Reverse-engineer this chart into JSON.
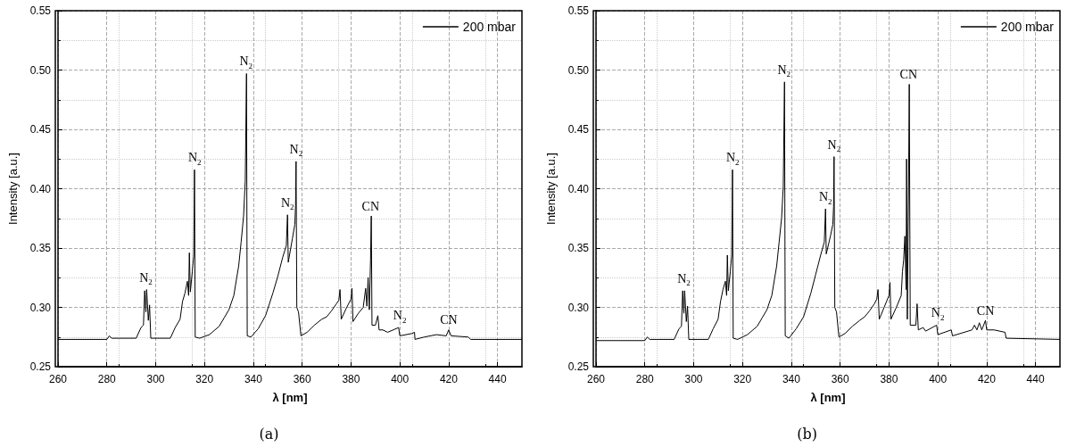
{
  "chart_data": [
    {
      "type": "line",
      "title": "(a)",
      "xlabel": "λ [nm]",
      "ylabel": "Intensity [a.u.]",
      "xlim": [
        260,
        450
      ],
      "xticks": [
        260,
        280,
        300,
        320,
        340,
        360,
        380,
        400,
        420,
        440
      ],
      "ylim": [
        0.25,
        0.55
      ],
      "yticks": [
        0.25,
        {
          "value": 0.3,
          "label": "0.30"
        },
        0.35,
        {
          "value": 0.4,
          "label": "0.40"
        },
        0.45,
        {
          "value": 0.5,
          "label": "0.50"
        },
        0.55
      ],
      "grid": true,
      "legend": "top right",
      "marker": "none",
      "line_style": "solid",
      "series": [
        {
          "name": "200 mbar",
          "color": "#000000",
          "x": [
            260,
            280,
            281,
            282,
            292,
            294,
            295,
            295.5,
            296,
            296.3,
            297,
            297.5,
            298,
            306,
            308,
            310,
            311,
            312,
            313,
            313.5,
            313.8,
            314.2,
            315,
            315.6,
            315.9,
            316.2,
            318,
            322,
            326,
            328,
            330,
            332,
            334,
            335,
            336,
            336.7,
            337.2,
            337.5,
            339,
            342,
            345,
            348,
            350,
            352,
            353.5,
            354,
            354.3,
            356,
            357,
            357.3,
            357.5,
            357.8,
            358.5,
            359.5,
            362,
            365,
            368,
            370,
            372,
            374,
            375,
            375.5,
            376,
            378,
            380,
            380.4,
            380.8,
            383,
            385,
            386,
            386.5,
            387,
            387.5,
            388,
            388.3,
            388.6,
            390,
            391,
            391.5,
            393,
            395,
            399.5,
            400,
            405,
            406,
            406.2,
            410,
            415,
            419,
            420,
            421,
            428,
            429,
            450
          ],
          "values": [
            0.273,
            0.273,
            0.276,
            0.274,
            0.274,
            0.283,
            0.285,
            0.314,
            0.296,
            0.315,
            0.289,
            0.302,
            0.274,
            0.274,
            0.283,
            0.29,
            0.305,
            0.312,
            0.322,
            0.31,
            0.346,
            0.313,
            0.33,
            0.344,
            0.416,
            0.275,
            0.274,
            0.277,
            0.284,
            0.291,
            0.298,
            0.31,
            0.335,
            0.355,
            0.377,
            0.407,
            0.497,
            0.276,
            0.275,
            0.282,
            0.293,
            0.312,
            0.326,
            0.342,
            0.352,
            0.378,
            0.338,
            0.358,
            0.37,
            0.386,
            0.423,
            0.3,
            0.296,
            0.276,
            0.279,
            0.285,
            0.29,
            0.292,
            0.297,
            0.303,
            0.306,
            0.315,
            0.29,
            0.299,
            0.307,
            0.316,
            0.288,
            0.295,
            0.3,
            0.316,
            0.301,
            0.325,
            0.298,
            0.34,
            0.377,
            0.285,
            0.285,
            0.293,
            0.281,
            0.281,
            0.279,
            0.283,
            0.276,
            0.278,
            0.279,
            0.273,
            0.275,
            0.277,
            0.276,
            0.281,
            0.276,
            0.275,
            0.273,
            0.273
          ]
        }
      ],
      "annotations": [
        {
          "text": "N$_{2}$",
          "x": 296,
          "y": 0.315
        },
        {
          "text": "N$_{2}$",
          "x": 316,
          "y": 0.416
        },
        {
          "text": "N$_{2}$",
          "x": 337,
          "y": 0.497
        },
        {
          "text": "N$_{2}$",
          "x": 354,
          "y": 0.378
        },
        {
          "text": "N$_{2}$",
          "x": 357.5,
          "y": 0.423
        },
        {
          "text": "CN",
          "x": 388,
          "y": 0.377
        },
        {
          "text": "N$_{2}$",
          "x": 400,
          "y": 0.283
        },
        {
          "text": "CN",
          "x": 420,
          "y": 0.281
        }
      ]
    },
    {
      "type": "line",
      "title": "(b)",
      "xlabel": "λ [nm]",
      "ylabel": "Intensity [a.u.]",
      "xlim": [
        260,
        450
      ],
      "xticks": [
        260,
        280,
        300,
        320,
        340,
        360,
        380,
        400,
        420,
        440
      ],
      "ylim": [
        0.25,
        0.55
      ],
      "yticks": [
        0.25,
        {
          "value": 0.3,
          "label": "0.30"
        },
        0.35,
        {
          "value": 0.4,
          "label": "0.40"
        },
        0.45,
        {
          "value": 0.5,
          "label": "0.50"
        },
        0.55
      ],
      "grid": true,
      "legend": "top right",
      "marker": "none",
      "line_style": "solid",
      "series": [
        {
          "name": "200 mbar",
          "color": "#000000",
          "x": [
            260,
            280,
            281,
            282,
            292,
            294,
            295,
            295.5,
            296,
            296.3,
            297,
            297.5,
            298,
            306,
            308,
            310,
            311,
            312,
            313,
            313.5,
            313.8,
            314.2,
            315,
            315.6,
            315.9,
            316.2,
            318,
            322,
            326,
            328,
            330,
            332,
            334,
            335,
            336,
            336.7,
            337.2,
            337.5,
            339,
            342,
            345,
            348,
            350,
            352,
            353.5,
            354,
            354.3,
            356,
            357,
            357.3,
            357.5,
            357.8,
            358.5,
            359.5,
            362,
            365,
            368,
            370,
            372,
            374,
            375,
            375.5,
            376,
            378,
            380,
            380.4,
            380.8,
            383,
            385,
            385.5,
            386,
            386.5,
            387,
            387.2,
            387.5,
            388,
            388.3,
            388.7,
            391,
            391.5,
            392,
            394,
            395,
            399.5,
            400,
            405.5,
            406,
            414,
            415,
            416,
            417,
            418,
            419.5,
            420,
            423,
            427.5,
            428,
            450
          ],
          "values": [
            0.272,
            0.272,
            0.275,
            0.273,
            0.273,
            0.282,
            0.284,
            0.314,
            0.295,
            0.314,
            0.288,
            0.301,
            0.273,
            0.273,
            0.282,
            0.29,
            0.305,
            0.315,
            0.322,
            0.31,
            0.344,
            0.314,
            0.33,
            0.344,
            0.416,
            0.274,
            0.273,
            0.277,
            0.284,
            0.291,
            0.298,
            0.31,
            0.335,
            0.355,
            0.375,
            0.402,
            0.49,
            0.276,
            0.274,
            0.282,
            0.292,
            0.312,
            0.328,
            0.344,
            0.355,
            0.383,
            0.345,
            0.36,
            0.37,
            0.385,
            0.427,
            0.3,
            0.296,
            0.275,
            0.278,
            0.284,
            0.289,
            0.292,
            0.297,
            0.303,
            0.307,
            0.315,
            0.29,
            0.3,
            0.31,
            0.321,
            0.29,
            0.3,
            0.31,
            0.33,
            0.34,
            0.36,
            0.315,
            0.425,
            0.29,
            0.4,
            0.488,
            0.285,
            0.285,
            0.303,
            0.281,
            0.283,
            0.28,
            0.285,
            0.277,
            0.281,
            0.276,
            0.281,
            0.285,
            0.281,
            0.287,
            0.281,
            0.289,
            0.281,
            0.281,
            0.279,
            0.274,
            0.273
          ]
        }
      ],
      "annotations": [
        {
          "text": "N$_{2}$",
          "x": 296,
          "y": 0.314
        },
        {
          "text": "N$_{2}$",
          "x": 316,
          "y": 0.416
        },
        {
          "text": "N$_{2}$",
          "x": 337,
          "y": 0.49
        },
        {
          "text": "N$_{2}$",
          "x": 354,
          "y": 0.383
        },
        {
          "text": "N$_{2}$",
          "x": 357.5,
          "y": 0.427
        },
        {
          "text": "CN",
          "x": 388,
          "y": 0.488
        },
        {
          "text": "N$_{2}$",
          "x": 400,
          "y": 0.285
        },
        {
          "text": "CN",
          "x": 419.5,
          "y": 0.289
        }
      ]
    }
  ]
}
